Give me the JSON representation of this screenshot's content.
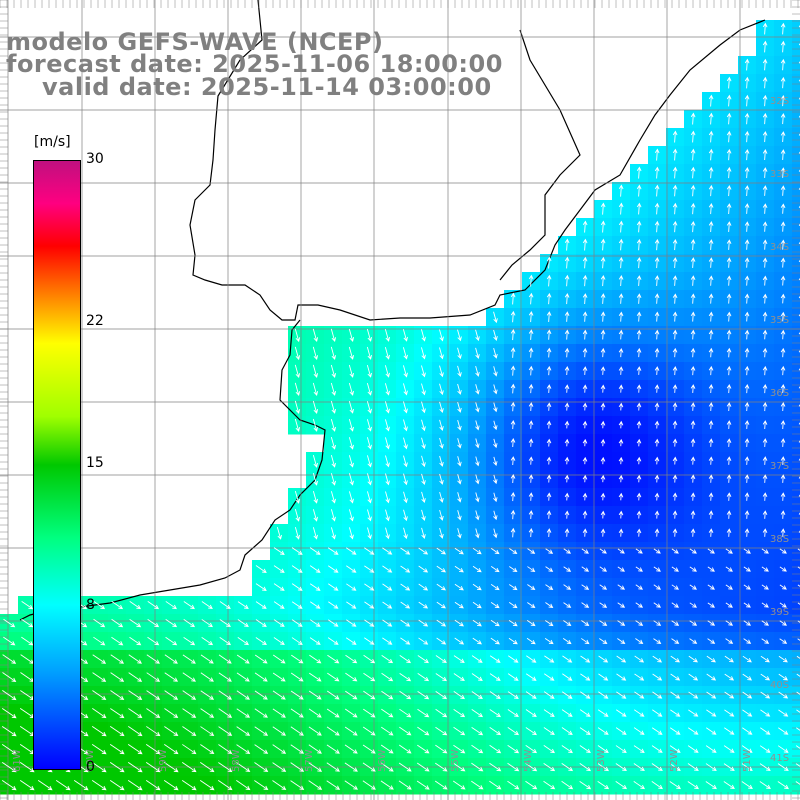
{
  "title": {
    "line1": "modelo GEFS-WAVE (NCEP)",
    "line2": "forecast date: 2025-11-06 18:00:00",
    "line3": "valid date: 2025-11-14 03:00:00"
  },
  "colorbar": {
    "unit": "[m/s]",
    "ticks": [
      "30",
      "22",
      "15",
      "8",
      "0"
    ],
    "tick_values": [
      30,
      22,
      15,
      8,
      0
    ]
  },
  "grid": {
    "lat_labels": [
      "32S",
      "33S",
      "34S",
      "35S",
      "36S",
      "37S",
      "38S",
      "39S",
      "40S",
      "41S"
    ],
    "lon_labels": [
      "61W",
      "60W",
      "59W",
      "58W",
      "57W",
      "56W",
      "55W",
      "54W",
      "53W",
      "52W",
      "51W"
    ]
  },
  "colors": {
    "land": "#ffffff",
    "coastline": "#000000",
    "grid": "#808080",
    "vectors": "#ffffff"
  }
}
